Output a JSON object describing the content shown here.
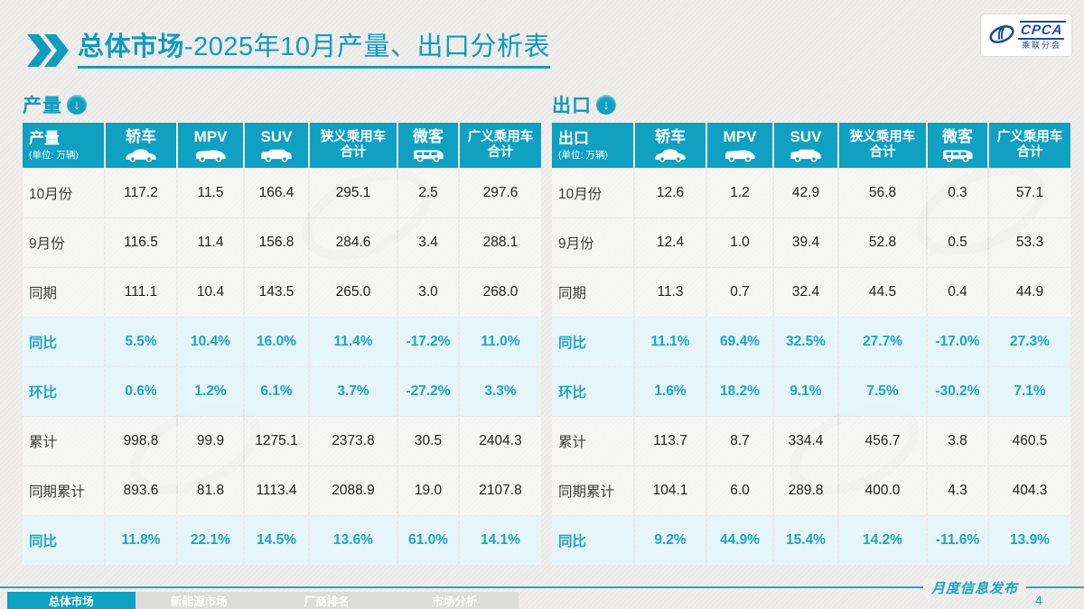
{
  "slide": {
    "title_bold": "总体市场",
    "title_rest": "-2025年10月产量、出口分析表",
    "footer_caption": "月度信息发布",
    "page_number": "4"
  },
  "logo": {
    "name": "CPCA",
    "cn": "乘联分会"
  },
  "unit": "(单位: 万辆)",
  "columns": [
    {
      "label": "轿车",
      "icon": "sedan-icon"
    },
    {
      "label": "MPV",
      "icon": "mpv-icon"
    },
    {
      "label": "SUV",
      "icon": "suv-icon"
    },
    {
      "label": "狭义乘用车",
      "label2": "合计"
    },
    {
      "label": "微客",
      "icon": "minibus-icon"
    },
    {
      "label": "广义乘用车",
      "label2": "合计"
    }
  ],
  "tables": [
    {
      "id": "production",
      "section_label": "产量",
      "rows": [
        {
          "label": "10月份",
          "style": "plain",
          "values": [
            "117.2",
            "11.5",
            "166.4",
            "295.1",
            "2.5",
            "297.6"
          ]
        },
        {
          "label": "9月份",
          "style": "plain",
          "values": [
            "116.5",
            "11.4",
            "156.8",
            "284.6",
            "3.4",
            "288.1"
          ]
        },
        {
          "label": "同期",
          "style": "plain",
          "values": [
            "111.1",
            "10.4",
            "143.5",
            "265.0",
            "3.0",
            "268.0"
          ]
        },
        {
          "label": "同比",
          "style": "percent",
          "values": [
            "5.5%",
            "10.4%",
            "16.0%",
            "11.4%",
            "-17.2%",
            "11.0%"
          ]
        },
        {
          "label": "环比",
          "style": "percent",
          "values": [
            "0.6%",
            "1.2%",
            "6.1%",
            "3.7%",
            "-27.2%",
            "3.3%"
          ]
        },
        {
          "label": "累计",
          "style": "plain",
          "values": [
            "998.8",
            "99.9",
            "1275.1",
            "2373.8",
            "30.5",
            "2404.3"
          ]
        },
        {
          "label": "同期累计",
          "style": "plain",
          "values": [
            "893.6",
            "81.8",
            "1113.4",
            "2088.9",
            "19.0",
            "2107.8"
          ]
        },
        {
          "label": "同比",
          "style": "percent",
          "values": [
            "11.8%",
            "22.1%",
            "14.5%",
            "13.6%",
            "61.0%",
            "14.1%"
          ]
        }
      ]
    },
    {
      "id": "export",
      "section_label": "出口",
      "rows": [
        {
          "label": "10月份",
          "style": "plain",
          "values": [
            "12.6",
            "1.2",
            "42.9",
            "56.8",
            "0.3",
            "57.1"
          ]
        },
        {
          "label": "9月份",
          "style": "plain",
          "values": [
            "12.4",
            "1.0",
            "39.4",
            "52.8",
            "0.5",
            "53.3"
          ]
        },
        {
          "label": "同期",
          "style": "plain",
          "values": [
            "11.3",
            "0.7",
            "32.4",
            "44.5",
            "0.4",
            "44.9"
          ]
        },
        {
          "label": "同比",
          "style": "percent",
          "values": [
            "11.1%",
            "69.4%",
            "32.5%",
            "27.7%",
            "-17.0%",
            "27.3%"
          ]
        },
        {
          "label": "环比",
          "style": "percent",
          "values": [
            "1.6%",
            "18.2%",
            "9.1%",
            "7.5%",
            "-30.2%",
            "7.1%"
          ]
        },
        {
          "label": "累计",
          "style": "plain",
          "values": [
            "113.7",
            "8.7",
            "334.4",
            "456.7",
            "3.8",
            "460.5"
          ]
        },
        {
          "label": "同期累计",
          "style": "plain",
          "values": [
            "104.1",
            "6.0",
            "289.8",
            "400.0",
            "4.3",
            "404.3"
          ]
        },
        {
          "label": "同比",
          "style": "percent",
          "values": [
            "9.2%",
            "44.9%",
            "15.4%",
            "14.2%",
            "-11.6%",
            "13.9%"
          ]
        }
      ]
    }
  ],
  "footer_tabs": [
    {
      "label": "总体市场",
      "active": true
    },
    {
      "label": "新能源市场",
      "active": false
    },
    {
      "label": "厂商排名",
      "active": false
    },
    {
      "label": "市场分析",
      "active": false
    }
  ],
  "colors": {
    "teal_header": "#0fa0c2",
    "title_teal": "#0f9cc0",
    "percent_text": "#1da4c6",
    "percent_row_bg": "#e5f4fa",
    "logo_blue": "#1b4a9b",
    "inactive_tab_bg": "#dcdcdb",
    "page_bg": "#efeeec"
  }
}
